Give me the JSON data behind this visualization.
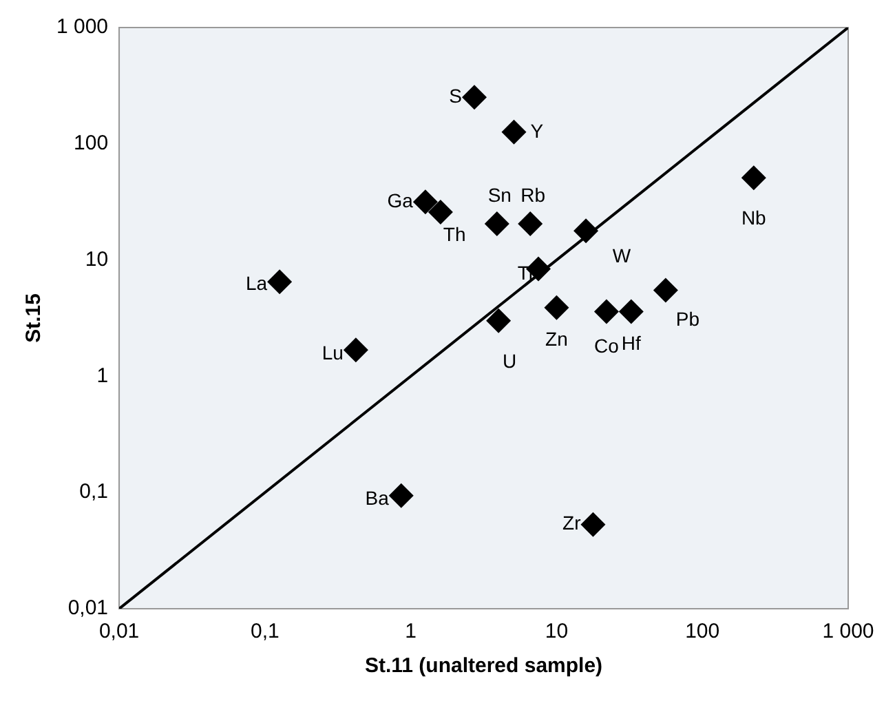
{
  "chart_data": {
    "type": "scatter",
    "xlabel": "St.11 (unaltered sample)",
    "ylabel": "St.15",
    "log": "xy",
    "grid": false,
    "legend": false,
    "marker": "diamond",
    "xlim": [
      0.01,
      1000
    ],
    "ylim": [
      0.01,
      1000
    ],
    "xticks": [
      {
        "value": 0.01,
        "label": "0,01"
      },
      {
        "value": 0.1,
        "label": "0,1"
      },
      1,
      10,
      100,
      {
        "value": 1000,
        "label": "1 000"
      }
    ],
    "yticks": [
      {
        "value": 0.01,
        "label": "0,01"
      },
      {
        "value": 0.1,
        "label": "0,1"
      },
      1,
      10,
      100,
      {
        "value": 1000,
        "label": "1 000"
      }
    ],
    "series": [
      {
        "color": "#000000",
        "x": [
          2.73,
          5.1,
          1.26,
          1.6,
          3.9,
          6.6,
          15.9,
          7.5,
          0.126,
          4.0,
          10,
          22,
          32.5,
          56,
          225,
          0.42,
          0.86,
          17.8
        ],
        "values": [
          251,
          126,
          31.6,
          25.8,
          20.5,
          20.5,
          17.8,
          8.4,
          6.5,
          3.0,
          3.9,
          3.6,
          3.6,
          5.5,
          51,
          1.68,
          0.094,
          0.053
        ]
      },
      {
        "type": "line",
        "color": "#000000",
        "marker": "none",
        "x": [
          0.01,
          1000
        ],
        "values": [
          0.01,
          1000
        ]
      }
    ],
    "annotations": [
      {
        "text": "S",
        "x": 2.73,
        "y": 251
      },
      {
        "text": "Y",
        "x": 5.1,
        "y": 126
      },
      {
        "text": "Ga",
        "x": 1.26,
        "y": 31.6
      },
      {
        "text": "Th",
        "x": 1.6,
        "y": 25.8
      },
      {
        "text": "Sn",
        "x": 3.9,
        "y": 20.5
      },
      {
        "text": "Rb",
        "x": 6.6,
        "y": 20.5
      },
      {
        "text": "W",
        "x": 15.9,
        "y": 17.8
      },
      {
        "text": "Ti",
        "x": 7.5,
        "y": 8.4
      },
      {
        "text": "La",
        "x": 0.126,
        "y": 6.5
      },
      {
        "text": "U",
        "x": 4.0,
        "y": 3.0
      },
      {
        "text": "Zn",
        "x": 10,
        "y": 3.9
      },
      {
        "text": "Co",
        "x": 22,
        "y": 3.6
      },
      {
        "text": "Hf",
        "x": 32.5,
        "y": 3.6
      },
      {
        "text": "Pb",
        "x": 56,
        "y": 5.5
      },
      {
        "text": "Nb",
        "x": 225,
        "y": 51
      },
      {
        "text": "Lu",
        "x": 0.42,
        "y": 1.68
      },
      {
        "text": "Ba",
        "x": 0.86,
        "y": 0.094
      },
      {
        "text": "Zr",
        "x": 17.8,
        "y": 0.053
      }
    ]
  }
}
